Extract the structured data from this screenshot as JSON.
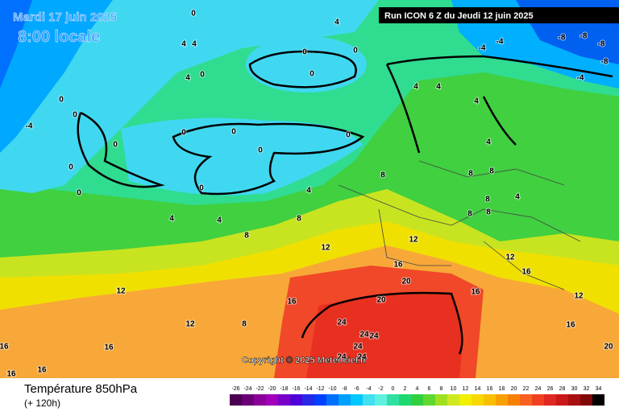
{
  "header": {
    "date": "Mardi 17 juin 2025",
    "time": "8:00 locale",
    "run": "Run ICON 6 Z du Jeudi 12 juin 2025"
  },
  "map": {
    "copyright": "Copyright © 2025 Meteociel.fr",
    "contour_labels": [
      0,
      4,
      -4,
      -4,
      -8,
      -8,
      -8,
      -8,
      -4,
      0,
      0,
      0,
      4,
      4,
      4,
      0,
      0,
      0,
      0,
      -4,
      0,
      0,
      0,
      0,
      0,
      0,
      0,
      4,
      4,
      4,
      4,
      8,
      4,
      4,
      4,
      8,
      8,
      8,
      8,
      8,
      4,
      8,
      8,
      12,
      12,
      16,
      12,
      16,
      12,
      20,
      16,
      20,
      16,
      12,
      12,
      8,
      24,
      24,
      24,
      24,
      24,
      24,
      16,
      20,
      16,
      16,
      16,
      16
    ]
  },
  "legend": {
    "title": "Température 850hPa",
    "lead": "(+ 120h)",
    "scale": [
      -26,
      -24,
      -22,
      -20,
      -18,
      -16,
      -14,
      -12,
      -10,
      -8,
      -6,
      -4,
      -2,
      0,
      2,
      4,
      6,
      8,
      10,
      12,
      14,
      16,
      18,
      20,
      22,
      24,
      26,
      28,
      30,
      32,
      34
    ],
    "colors": [
      "#4a0050",
      "#6a0078",
      "#8a0098",
      "#a000b8",
      "#7800c8",
      "#5000d8",
      "#2828e8",
      "#0040ff",
      "#0070ff",
      "#00a0ff",
      "#00c8ff",
      "#40e0f0",
      "#60f0e0",
      "#30e0a0",
      "#20d870",
      "#30d040",
      "#60d830",
      "#a0e020",
      "#d0e820",
      "#f0f000",
      "#f8d800",
      "#f8c000",
      "#f8a000",
      "#f88000",
      "#f86020",
      "#f04020",
      "#e02820",
      "#c81818",
      "#a81010",
      "#800808",
      "#000000"
    ]
  }
}
